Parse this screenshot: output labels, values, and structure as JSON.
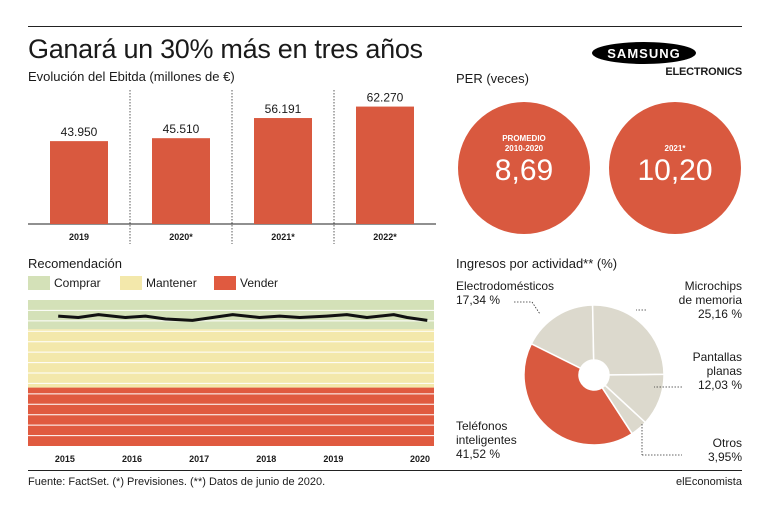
{
  "header": {
    "title": "Ganará un 30% más en tres años",
    "logo_word": "SAMSUNG",
    "logo_sub": "ELECTRONICS"
  },
  "colors": {
    "accent": "#d9593f",
    "comprar": "#d4e1b8",
    "mantener": "#f3e8ab",
    "vender": "#e05a40",
    "pie_light": "#dcd9cd",
    "line": "#111111"
  },
  "ebitda": {
    "title": "Evolución del Ebitda (millones de €)"
  },
  "per": {
    "title": "PER (veces)",
    "circles": [
      {
        "label_line1": "PROMEDIO",
        "label_line2": "2010-2020",
        "value": "8,69"
      },
      {
        "label_line1": "2021*",
        "label_line2": "",
        "value": "10,20"
      }
    ]
  },
  "recommendation": {
    "title": "Recomendación",
    "legend": [
      "Comprar",
      "Mantener",
      "Vender"
    ]
  },
  "ingresos": {
    "title": "Ingresos por actividad** (%)",
    "labels": [
      {
        "line1": "Electrodomésticos",
        "line2": "17,34 %"
      },
      {
        "line1": "Microchips",
        "line2": "de memoria",
        "line3": "25,16 %"
      },
      {
        "line1": "Pantallas",
        "line2": "planas",
        "line3": "12,03 %"
      },
      {
        "line1": "Otros",
        "line2": "3,95%"
      },
      {
        "line1": "Teléfonos",
        "line2": "inteligentes",
        "line3": "41,52 %"
      }
    ]
  },
  "footer": {
    "source": "Fuente: FactSet. (*) Previsiones. (**) Datos de junio de 2020.",
    "brand": "elEconomista"
  },
  "chart_data": [
    {
      "type": "bar",
      "title": "Evolución del Ebitda (millones de €)",
      "categories": [
        "2019",
        "2020*",
        "2021*",
        "2022*"
      ],
      "values": [
        43950,
        45510,
        56191,
        62270
      ],
      "value_labels": [
        "43.950",
        "45.510",
        "56.191",
        "62.270"
      ],
      "ylim": [
        0,
        70000
      ]
    },
    {
      "type": "line",
      "title": "Recomendación",
      "x_labels": [
        "2015",
        "2016",
        "2017",
        "2018",
        "2019",
        "2020"
      ],
      "bands": [
        {
          "name": "Comprar",
          "range": [
            0.8,
            1.0
          ]
        },
        {
          "name": "Mantener",
          "range": [
            0.4,
            0.8
          ]
        },
        {
          "name": "Vender",
          "range": [
            0.0,
            0.4
          ]
        }
      ],
      "x": [
        2015.0,
        2015.3,
        2015.6,
        2016.0,
        2016.3,
        2016.6,
        2017.0,
        2017.3,
        2017.6,
        2018.0,
        2018.3,
        2018.6,
        2019.0,
        2019.3,
        2019.6,
        2020.0,
        2020.2,
        2020.5
      ],
      "values": [
        0.89,
        0.88,
        0.9,
        0.88,
        0.89,
        0.87,
        0.86,
        0.88,
        0.9,
        0.88,
        0.89,
        0.88,
        0.89,
        0.9,
        0.88,
        0.9,
        0.88,
        0.86
      ],
      "ylim": [
        0,
        1
      ]
    },
    {
      "type": "pie",
      "title": "Ingresos por actividad** (%)",
      "categories": [
        "Microchips de memoria",
        "Pantallas planas",
        "Otros",
        "Teléfonos inteligentes",
        "Electrodomésticos"
      ],
      "values": [
        25.16,
        12.03,
        3.95,
        41.52,
        17.34
      ]
    }
  ]
}
